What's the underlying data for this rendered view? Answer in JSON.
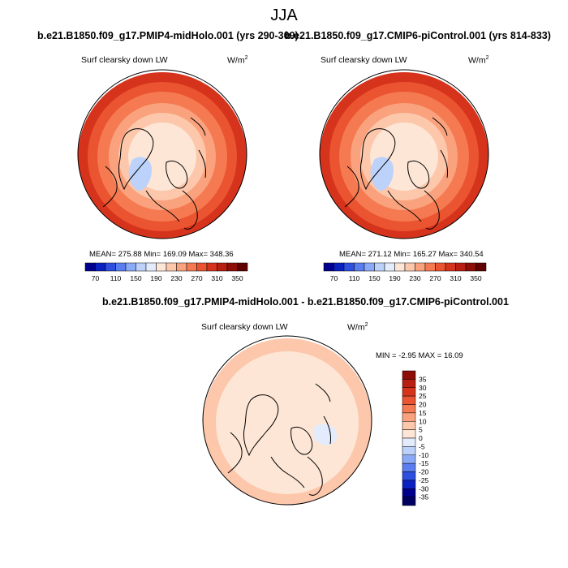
{
  "figure": {
    "season": "JJA",
    "left_title": "b.e21.B1850.f09_g17.PMIP4-midHolo.001 (yrs 290-309)",
    "right_title": "b.e21.B1850.f09_g17.CMIP6-piControl.001 (yrs 814-833)",
    "diff_title": "b.e21.B1850.f09_g17.PMIP4-midHolo.001 - b.e21.B1850.f09_g17.CMIP6-piControl.001",
    "variable": "Surf clearsky down LW",
    "unit_base": "W/m",
    "unit_exp": "2"
  },
  "chart_data": [
    {
      "type": "heatmap",
      "projection": "north polar stereographic",
      "title": "b.e21.B1850.f09_g17.PMIP4-midHolo.001 (yrs 290-309)",
      "variable": "Surf clearsky down LW",
      "units": "W/m2",
      "stats": {
        "mean": "275.88",
        "min": "169.09",
        "max": "348.36"
      },
      "stats_text": "MEAN= 275.88  Min= 169.09  Max= 348.36",
      "colorbar": {
        "orientation": "horizontal",
        "levels": [
          70,
          90,
          110,
          130,
          150,
          170,
          190,
          210,
          230,
          250,
          270,
          290,
          310,
          330,
          350
        ],
        "tick_labels": [
          "70",
          "110",
          "150",
          "190",
          "230",
          "270",
          "310",
          "350"
        ],
        "colors": [
          "#00008c",
          "#0b20c0",
          "#2e4fe0",
          "#5a7ef0",
          "#8aaaf8",
          "#bcd2fb",
          "#e2ecfd",
          "#fde6d6",
          "#fcc7ab",
          "#f9a27d",
          "#f57a52",
          "#ea5430",
          "#d6331c",
          "#b81e11",
          "#8e0d07",
          "#600000"
        ]
      }
    },
    {
      "type": "heatmap",
      "projection": "north polar stereographic",
      "title": "b.e21.B1850.f09_g17.CMIP6-piControl.001 (yrs 814-833)",
      "variable": "Surf clearsky down LW",
      "units": "W/m2",
      "stats": {
        "mean": "271.12",
        "min": "165.27",
        "max": "340.54"
      },
      "stats_text": "MEAN= 271.12  Min= 165.27  Max= 340.54",
      "colorbar": {
        "orientation": "horizontal",
        "levels": [
          70,
          90,
          110,
          130,
          150,
          170,
          190,
          210,
          230,
          250,
          270,
          290,
          310,
          330,
          350
        ],
        "tick_labels": [
          "70",
          "110",
          "150",
          "190",
          "230",
          "270",
          "310",
          "350"
        ],
        "colors": [
          "#00008c",
          "#0b20c0",
          "#2e4fe0",
          "#5a7ef0",
          "#8aaaf8",
          "#bcd2fb",
          "#e2ecfd",
          "#fde6d6",
          "#fcc7ab",
          "#f9a27d",
          "#f57a52",
          "#ea5430",
          "#d6331c",
          "#b81e11",
          "#8e0d07",
          "#600000"
        ]
      }
    },
    {
      "type": "heatmap",
      "projection": "north polar stereographic",
      "title": "b.e21.B1850.f09_g17.PMIP4-midHolo.001 - b.e21.B1850.f09_g17.CMIP6-piControl.001",
      "variable": "Surf clearsky down LW",
      "units": "W/m2",
      "stats": {
        "min": "-2.95",
        "max": "16.09"
      },
      "stats_text": "MIN =  -2.95 MAX =  16.09",
      "colorbar": {
        "orientation": "vertical",
        "levels": [
          35,
          30,
          25,
          20,
          15,
          10,
          5,
          0,
          -5,
          -10,
          -15,
          -20,
          -25,
          -30,
          -35
        ],
        "tick_labels": [
          "35",
          "30",
          "25",
          "20",
          "15",
          "10",
          "5",
          "0",
          "-5",
          "-10",
          "-15",
          "-20",
          "-25",
          "-30",
          "-35"
        ],
        "colors": [
          "#8e0d07",
          "#b81e11",
          "#d6331c",
          "#ea5430",
          "#f57a52",
          "#f9a27d",
          "#fcc7ab",
          "#fde6d6",
          "#e2ecfd",
          "#bcd2fb",
          "#8aaaf8",
          "#5a7ef0",
          "#2e4fe0",
          "#0b20c0",
          "#00008c",
          "#000060"
        ]
      }
    }
  ]
}
